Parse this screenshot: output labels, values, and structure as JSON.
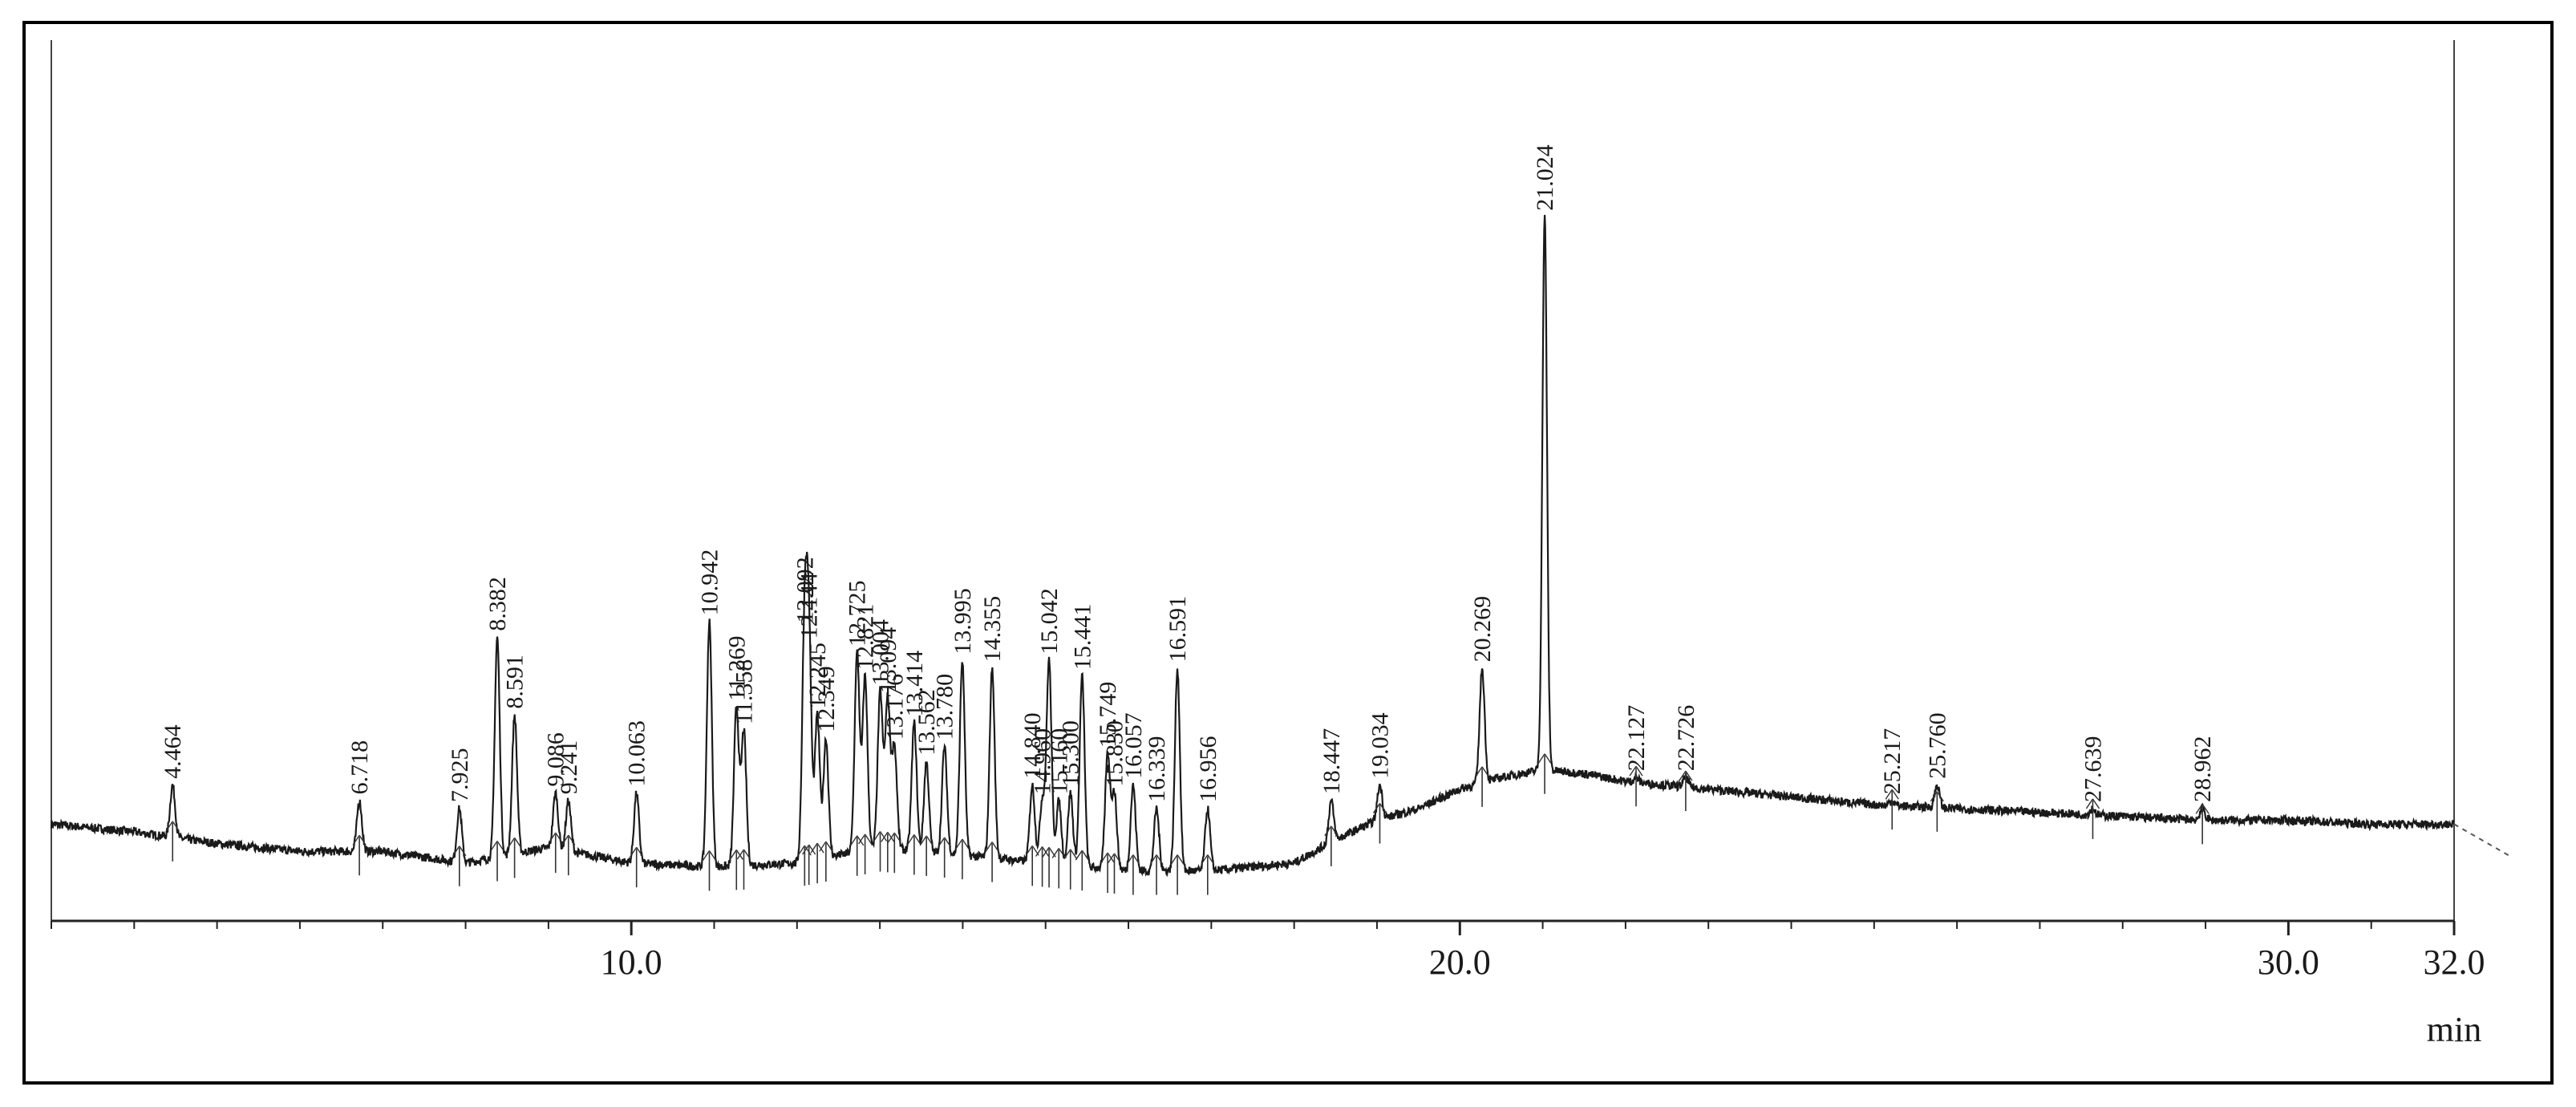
{
  "chart_data": {
    "type": "line",
    "title": "",
    "xlabel": "min",
    "ylabel": "",
    "xlim": [
      3.0,
      32.0
    ],
    "ylim": [
      0,
      100
    ],
    "grid": false,
    "x_ticks": [
      {
        "value": 10.0,
        "label": "10.0"
      },
      {
        "value": 20.0,
        "label": "20.0"
      },
      {
        "value": 30.0,
        "label": "30.0"
      },
      {
        "value": 32.0,
        "label": "32.0"
      }
    ],
    "baseline": [
      [
        3.0,
        8.0
      ],
      [
        4.0,
        7.0
      ],
      [
        5.0,
        5.5
      ],
      [
        6.0,
        4.5
      ],
      [
        7.0,
        4.5
      ],
      [
        8.0,
        3.0
      ],
      [
        9.0,
        5.0
      ],
      [
        10.0,
        3.0
      ],
      [
        11.0,
        2.5
      ],
      [
        12.0,
        3.0
      ],
      [
        13.0,
        5.0
      ],
      [
        14.0,
        4.0
      ],
      [
        15.0,
        3.0
      ],
      [
        16.0,
        2.0
      ],
      [
        17.0,
        2.0
      ],
      [
        18.0,
        3.0
      ],
      [
        18.5,
        6.0
      ],
      [
        19.0,
        8.5
      ],
      [
        19.5,
        10.0
      ],
      [
        20.0,
        12.5
      ],
      [
        20.5,
        14.0
      ],
      [
        21.0,
        15.0
      ],
      [
        21.5,
        14.5
      ],
      [
        22.0,
        13.5
      ],
      [
        23.0,
        12.5
      ],
      [
        24.0,
        11.5
      ],
      [
        25.0,
        10.5
      ],
      [
        26.0,
        10.0
      ],
      [
        27.0,
        9.5
      ],
      [
        28.0,
        9.0
      ],
      [
        29.0,
        8.5
      ],
      [
        30.0,
        8.5
      ],
      [
        31.0,
        8.0
      ],
      [
        32.0,
        8.0
      ]
    ],
    "peaks": [
      {
        "rt": 4.464,
        "label": "4.464",
        "height": 13
      },
      {
        "rt": 6.718,
        "label": "6.718",
        "height": 11
      },
      {
        "rt": 7.925,
        "label": "7.925",
        "height": 10
      },
      {
        "rt": 8.382,
        "label": "8.382",
        "height": 32
      },
      {
        "rt": 8.591,
        "label": "8.591",
        "height": 22
      },
      {
        "rt": 9.086,
        "label": "9.086",
        "height": 12
      },
      {
        "rt": 9.241,
        "label": "9.241",
        "height": 11
      },
      {
        "rt": 10.063,
        "label": "10.063",
        "height": 12
      },
      {
        "rt": 10.942,
        "label": "10.942",
        "height": 34
      },
      {
        "rt": 11.269,
        "label": "11.269",
        "height": 23
      },
      {
        "rt": 11.358,
        "label": "11.358",
        "height": 20
      },
      {
        "rt": 12.092,
        "label": "12.092",
        "height": 33
      },
      {
        "rt": 12.144,
        "label": "12.144",
        "height": 31
      },
      {
        "rt": 12.245,
        "label": "12.245",
        "height": 22
      },
      {
        "rt": 12.349,
        "label": "12.349",
        "height": 19
      },
      {
        "rt": 12.725,
        "label": "12.725",
        "height": 30
      },
      {
        "rt": 12.821,
        "label": "12.821",
        "height": 27
      },
      {
        "rt": 13.004,
        "label": "13.004",
        "height": 25
      },
      {
        "rt": 13.094,
        "label": "13.094",
        "height": 24
      },
      {
        "rt": 13.176,
        "label": "13.176",
        "height": 18
      },
      {
        "rt": 13.414,
        "label": "13.414",
        "height": 21
      },
      {
        "rt": 13.562,
        "label": "13.562",
        "height": 16
      },
      {
        "rt": 13.78,
        "label": "13.780",
        "height": 18
      },
      {
        "rt": 13.995,
        "label": "13.995",
        "height": 29
      },
      {
        "rt": 14.355,
        "label": "14.355",
        "height": 28
      },
      {
        "rt": 14.84,
        "label": "14.840",
        "height": 13
      },
      {
        "rt": 14.96,
        "label": "14.960",
        "height": 11
      },
      {
        "rt": 15.042,
        "label": "15.042",
        "height": 29
      },
      {
        "rt": 15.16,
        "label": "15.160",
        "height": 11
      },
      {
        "rt": 15.3,
        "label": "15.300",
        "height": 12
      },
      {
        "rt": 15.441,
        "label": "15.441",
        "height": 27
      },
      {
        "rt": 15.749,
        "label": "15.749",
        "height": 17
      },
      {
        "rt": 15.83,
        "label": "15.830",
        "height": 12
      },
      {
        "rt": 16.057,
        "label": "16.057",
        "height": 13
      },
      {
        "rt": 16.339,
        "label": "16.339",
        "height": 10
      },
      {
        "rt": 16.591,
        "label": "16.591",
        "height": 28
      },
      {
        "rt": 16.956,
        "label": "16.956",
        "height": 10
      },
      {
        "rt": 18.447,
        "label": "18.447",
        "height": 11
      },
      {
        "rt": 19.034,
        "label": "19.034",
        "height": 13
      },
      {
        "rt": 20.269,
        "label": "20.269",
        "height": 28
      },
      {
        "rt": 21.024,
        "label": "21.024",
        "height": 86
      },
      {
        "rt": 22.127,
        "label": "22.127",
        "height": 14
      },
      {
        "rt": 22.726,
        "label": "22.726",
        "height": 14
      },
      {
        "rt": 25.217,
        "label": "25.217",
        "height": 11
      },
      {
        "rt": 25.76,
        "label": "25.760",
        "height": 13
      },
      {
        "rt": 27.639,
        "label": "27.639",
        "height": 10
      },
      {
        "rt": 28.962,
        "label": "28.962",
        "height": 10
      }
    ],
    "line_color": "#1a1a1a"
  }
}
